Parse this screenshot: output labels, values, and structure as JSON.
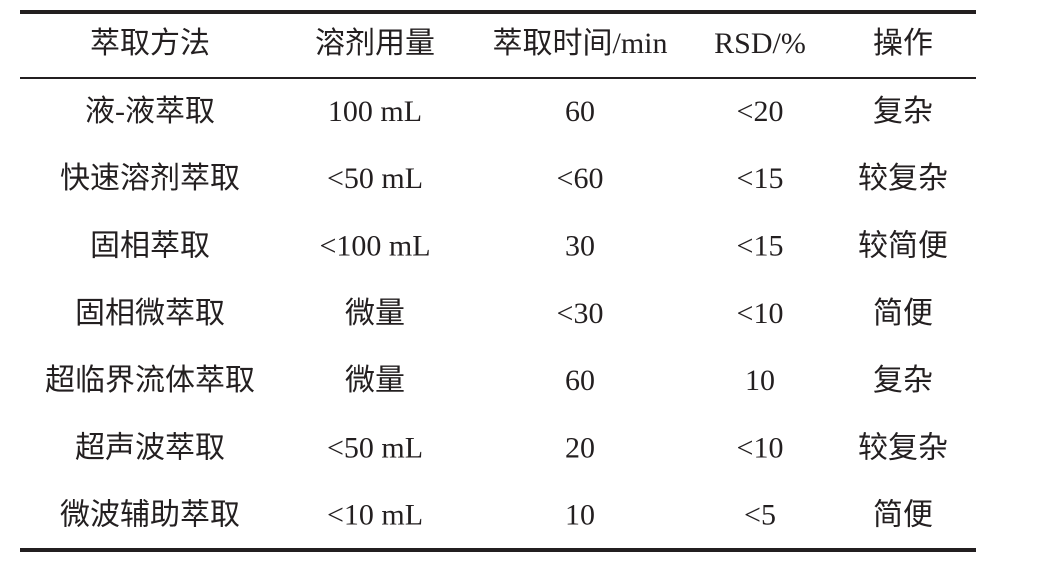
{
  "table": {
    "header": [
      "萃取方法",
      "溶剂用量",
      "萃取时间/min",
      "RSD/%",
      "操作"
    ],
    "rows": [
      [
        "液-液萃取",
        "100 mL",
        "60",
        "<20",
        "复杂"
      ],
      [
        "快速溶剂萃取",
        "<50 mL",
        "<60",
        "<15",
        "较复杂"
      ],
      [
        "固相萃取",
        "<100 mL",
        "30",
        "<15",
        "较简便"
      ],
      [
        "固相微萃取",
        "微量",
        "<30",
        "<10",
        "简便"
      ],
      [
        "超临界流体萃取",
        "微量",
        "60",
        "10",
        "复杂"
      ],
      [
        "超声波萃取",
        "<50 mL",
        "20",
        "<10",
        "较复杂"
      ],
      [
        "微波辅助萃取",
        "<10 mL",
        "10",
        "<5",
        "简便"
      ]
    ]
  }
}
